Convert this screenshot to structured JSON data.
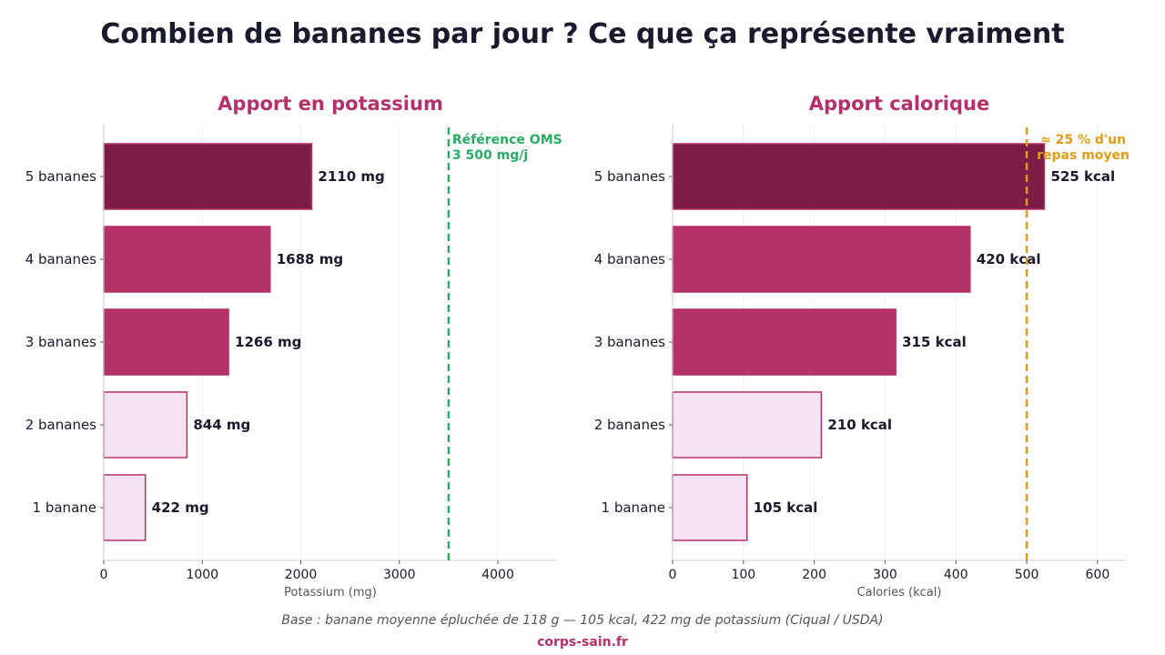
{
  "title": "Combien de bananes par jour ? Ce que ça représente vraiment",
  "footer": {
    "note": "Base : banane moyenne épluchée de 118 g — 105 kcal, 422 mg de potassium (Ciqual / USDA)",
    "site": "corps-sain.fr"
  },
  "colors": {
    "dark": "#7d1d46",
    "mid": "#b53268",
    "light": "#f5e3f3",
    "border": "#b53268",
    "panel_title": "#b5306a",
    "ref_green": "#27ae60",
    "ref_orange": "#e39b12",
    "text": "#1a1a2e",
    "axis_label": "#555555",
    "grid": "#eeeeee"
  },
  "chart_data": [
    {
      "type": "bar",
      "orientation": "horizontal",
      "title": "Apport en potassium",
      "xlabel": "Potassium (mg)",
      "ylabel": "",
      "categories": [
        "5 bananes",
        "4 bananes",
        "3 bananes",
        "2 bananes",
        "1 banane"
      ],
      "values": [
        2110,
        1688,
        1266,
        844,
        422
      ],
      "value_labels": [
        "2110 mg",
        "1688 mg",
        "1266 mg",
        "844 mg",
        "422 mg"
      ],
      "bar_styles": [
        "dark",
        "mid",
        "mid",
        "light",
        "light"
      ],
      "xlim": [
        0,
        4600
      ],
      "xticks": [
        0,
        1000,
        2000,
        3000,
        4000
      ],
      "xtick_labels": [
        "0",
        "1000",
        "2000",
        "3000",
        "4000"
      ],
      "grid": true,
      "reference": {
        "value": 3500,
        "color": "ref_green",
        "label_lines": [
          "Référence OMS",
          "3 500 mg/j"
        ]
      }
    },
    {
      "type": "bar",
      "orientation": "horizontal",
      "title": "Apport calorique",
      "xlabel": "Calories (kcal)",
      "ylabel": "",
      "categories": [
        "5 bananes",
        "4 bananes",
        "3 bananes",
        "2 bananes",
        "1 banane"
      ],
      "values": [
        525,
        420,
        315,
        210,
        105
      ],
      "value_labels": [
        "525 kcal",
        "420 kcal",
        "315 kcal",
        "210 kcal",
        "105 kcal"
      ],
      "bar_styles": [
        "dark",
        "mid",
        "mid",
        "light",
        "light"
      ],
      "xlim": [
        0,
        640
      ],
      "xticks": [
        0,
        100,
        200,
        300,
        400,
        500,
        600
      ],
      "xtick_labels": [
        "0",
        "100",
        "200",
        "300",
        "400",
        "500",
        "600"
      ],
      "grid": true,
      "reference": {
        "value": 500,
        "color": "ref_orange",
        "label_lines": [
          "≈ 25 % d'un",
          "repas moyen"
        ]
      }
    }
  ]
}
